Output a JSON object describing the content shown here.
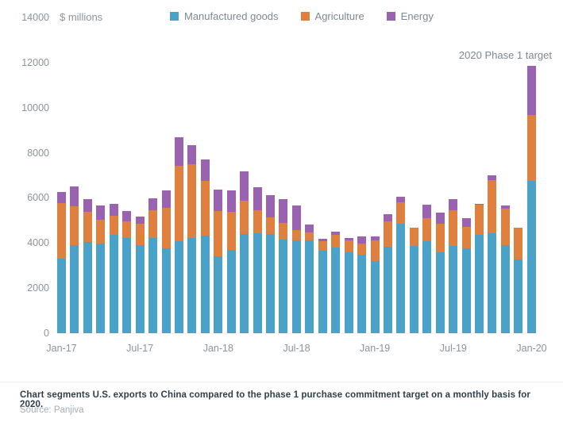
{
  "unit_label": "$ millions",
  "annotation_text": "2020 Phase 1 target",
  "caption": "Chart segments U.S. exports to China compared to the phase 1 purchase commitment target on a monthly basis for 2020.",
  "source": "Source: Panjiva",
  "colors": {
    "manufactured": "#4aa2c9",
    "agriculture": "#e0803f",
    "energy": "#9a63b0",
    "axis_text": "#8a939b",
    "caption_text": "#2f3e4a",
    "source_text": "#a3adb4"
  },
  "chart_data": {
    "type": "bar",
    "stacked": true,
    "title": "",
    "ylabel": "$ millions",
    "ylim": [
      0,
      14000
    ],
    "y_ticks": [
      0,
      2000,
      4000,
      6000,
      8000,
      10000,
      12000,
      14000
    ],
    "grid": false,
    "legend_position": "top",
    "x_tick_labels": [
      "Jan-17",
      "Jul-17",
      "Jan-18",
      "Jul-18",
      "Jan-19",
      "Jul-19",
      "Jan-20"
    ],
    "categories": [
      "Jan-17",
      "Feb-17",
      "Mar-17",
      "Apr-17",
      "May-17",
      "Jun-17",
      "Jul-17",
      "Aug-17",
      "Sep-17",
      "Oct-17",
      "Nov-17",
      "Dec-17",
      "Jan-18",
      "Feb-18",
      "Mar-18",
      "Apr-18",
      "May-18",
      "Jun-18",
      "Jul-18",
      "Aug-18",
      "Sep-18",
      "Oct-18",
      "Nov-18",
      "Dec-18",
      "Jan-19",
      "Feb-19",
      "Mar-19",
      "Apr-19",
      "May-19",
      "Jun-19",
      "Jul-19",
      "Aug-19",
      "Sep-19",
      "Oct-19",
      "Nov-19",
      "Dec-19",
      "Jan-20"
    ],
    "series": [
      {
        "name": "Manufactured goods",
        "color": "#4aa2c9",
        "values": [
          3300,
          3890,
          4050,
          3960,
          4360,
          4240,
          3890,
          4220,
          3780,
          4080,
          4240,
          4340,
          3430,
          3690,
          4400,
          4450,
          4400,
          4160,
          4120,
          4100,
          3660,
          3800,
          3580,
          3470,
          3220,
          3820,
          4870,
          3880,
          4070,
          3580,
          3860,
          3750,
          4370,
          4440,
          3900,
          3290,
          6740
        ]
      },
      {
        "name": "Agriculture",
        "color": "#e0803f",
        "values": [
          2460,
          1750,
          1340,
          1070,
          860,
          740,
          980,
          1230,
          1780,
          3360,
          3240,
          2400,
          2000,
          1680,
          1460,
          1000,
          730,
          740,
          450,
          380,
          420,
          560,
          520,
          520,
          910,
          1130,
          930,
          790,
          1020,
          1290,
          1590,
          960,
          1320,
          2340,
          1640,
          1400,
          2930
        ]
      },
      {
        "name": "Energy",
        "color": "#9a63b0",
        "values": [
          520,
          860,
          560,
          630,
          530,
          450,
          300,
          540,
          780,
          1240,
          850,
          980,
          930,
          950,
          1320,
          1030,
          1000,
          1030,
          1090,
          350,
          100,
          140,
          120,
          310,
          180,
          320,
          270,
          0,
          600,
          490,
          510,
          390,
          50,
          220,
          110,
          0,
          2170
        ]
      }
    ],
    "annotation": {
      "text": "2020 Phase 1 target",
      "target_category": "Jan-20"
    }
  }
}
